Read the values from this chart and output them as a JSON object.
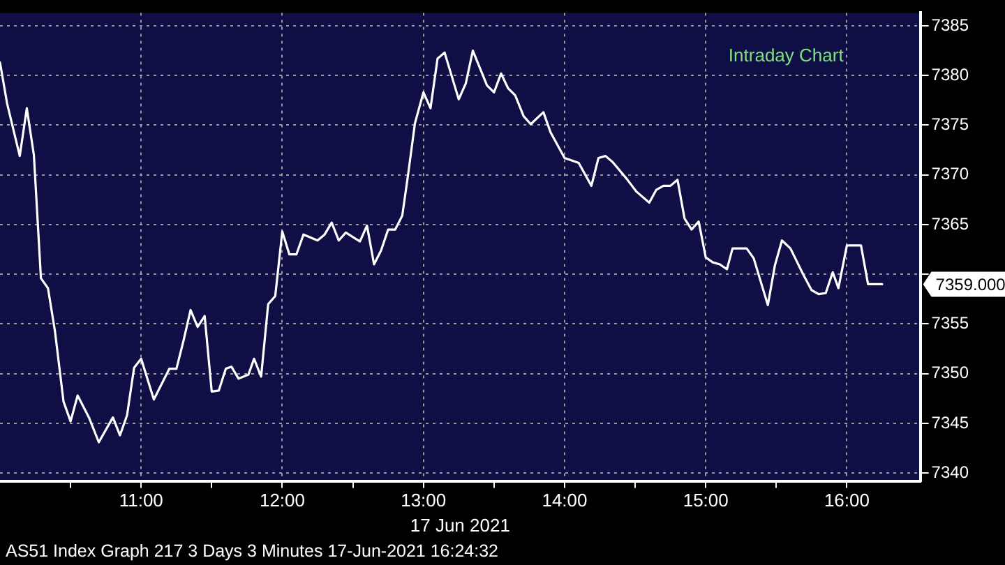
{
  "chart_data": {
    "type": "line",
    "title": "Intraday Chart",
    "xlabel": "17 Jun 2021",
    "x": [
      10.0,
      10.05,
      10.14,
      10.19,
      10.24,
      10.29,
      10.34,
      10.39,
      10.45,
      10.5,
      10.55,
      10.63,
      10.7,
      10.8,
      10.85,
      10.9,
      10.95,
      11.0,
      11.09,
      11.2,
      11.25,
      11.3,
      11.35,
      11.4,
      11.45,
      11.5,
      11.55,
      11.6,
      11.64,
      11.69,
      11.76,
      11.8,
      11.85,
      11.9,
      11.95,
      12.0,
      12.05,
      12.1,
      12.15,
      12.25,
      12.3,
      12.35,
      12.4,
      12.45,
      12.55,
      12.6,
      12.65,
      12.7,
      12.75,
      12.8,
      12.85,
      12.89,
      12.94,
      13.0,
      13.05,
      13.1,
      13.15,
      13.25,
      13.3,
      13.35,
      13.45,
      13.5,
      13.55,
      13.6,
      13.65,
      13.71,
      13.76,
      13.85,
      13.9,
      14.0,
      14.1,
      14.19,
      14.24,
      14.29,
      14.34,
      14.44,
      14.51,
      14.6,
      14.65,
      14.7,
      14.75,
      14.8,
      14.85,
      14.9,
      14.95,
      15.0,
      15.05,
      15.1,
      15.15,
      15.19,
      15.29,
      15.34,
      15.44,
      15.49,
      15.54,
      15.6,
      15.69,
      15.75,
      15.8,
      15.85,
      15.9,
      15.94,
      16.0,
      16.1,
      16.15,
      16.25
    ],
    "values": [
      7381.3,
      7377.2,
      7371.9,
      7376.7,
      7372.0,
      7359.6,
      7358.6,
      7354.2,
      7347.2,
      7345.2,
      7347.8,
      7345.6,
      7343.1,
      7345.6,
      7343.8,
      7345.8,
      7350.6,
      7351.5,
      7347.4,
      7350.5,
      7350.5,
      7353.3,
      7356.4,
      7354.7,
      7355.8,
      7348.2,
      7348.3,
      7350.5,
      7350.7,
      7349.5,
      7349.9,
      7351.5,
      7349.7,
      7357.0,
      7357.8,
      7364.3,
      7362.0,
      7362.0,
      7364.0,
      7363.4,
      7364.0,
      7365.2,
      7363.4,
      7364.2,
      7363.3,
      7364.9,
      7361.0,
      7362.4,
      7364.5,
      7364.5,
      7365.9,
      7369.9,
      7375.2,
      7378.3,
      7376.7,
      7381.7,
      7382.3,
      7377.6,
      7379.2,
      7382.5,
      7379.0,
      7378.3,
      7380.2,
      7378.7,
      7378.0,
      7375.9,
      7375.1,
      7376.3,
      7374.3,
      7371.7,
      7371.2,
      7368.9,
      7371.7,
      7371.9,
      7371.3,
      7369.6,
      7368.3,
      7367.2,
      7368.5,
      7368.9,
      7368.9,
      7369.5,
      7365.6,
      7364.5,
      7365.3,
      7361.7,
      7361.2,
      7361.0,
      7360.5,
      7362.6,
      7362.6,
      7361.6,
      7356.9,
      7360.9,
      7363.4,
      7362.6,
      7360.0,
      7358.4,
      7358.0,
      7358.1,
      7360.2,
      7358.6,
      7362.9,
      7362.9,
      7359.0,
      7359.0
    ],
    "color": "#ffffff",
    "xlim": [
      10.0,
      16.52
    ],
    "xticks": [
      {
        "value": 10.5,
        "label": null
      },
      {
        "value": 11,
        "label": "11:00"
      },
      {
        "value": 11.5,
        "label": null
      },
      {
        "value": 12,
        "label": "12:00"
      },
      {
        "value": 12.5,
        "label": null
      },
      {
        "value": 13,
        "label": "13:00"
      },
      {
        "value": 13.5,
        "label": null
      },
      {
        "value": 14,
        "label": "14:00"
      },
      {
        "value": 14.5,
        "label": null
      },
      {
        "value": 15,
        "label": "15:00"
      },
      {
        "value": 15.5,
        "label": null
      },
      {
        "value": 16,
        "label": "16:00"
      }
    ],
    "ylim": [
      7339.2,
      7386.3
    ],
    "yticks": [
      7340,
      7345,
      7350,
      7355,
      {
        "value": 7360,
        "label": null
      },
      7365,
      7370,
      7375,
      7380,
      7385
    ],
    "grid": true,
    "legend": false,
    "marker": "none",
    "line_style": "solid",
    "annotations": [
      "7359.000",
      "AS51 Index Graph 217 3 Days 3 Minutes 17-Jun-2021 16:24:32"
    ]
  }
}
